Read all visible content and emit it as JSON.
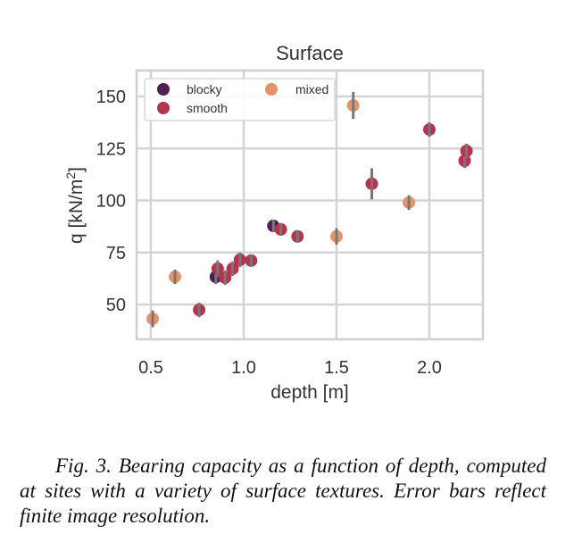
{
  "chart_data": {
    "type": "scatter",
    "title": "Surface",
    "xlabel": "depth [m]",
    "ylabel": "q [kN/m",
    "ylabel_superscript": "2",
    "ylabel_close": "]",
    "xlim": [
      0.46,
      2.3
    ],
    "ylim": [
      34,
      162
    ],
    "xticks": [
      0.5,
      1.0,
      1.5,
      2.0
    ],
    "xtick_labels": [
      "0.5",
      "1.0",
      "1.5",
      "2.0"
    ],
    "yticks": [
      50,
      75,
      100,
      125,
      150
    ],
    "ytick_labels": [
      "50",
      "75",
      "100",
      "125",
      "150"
    ],
    "grid": true,
    "legend_position": "top-left",
    "legend_columns": 2,
    "series": [
      {
        "name": "blocky",
        "color": "#4d1f52",
        "points": [
          {
            "x": 0.85,
            "y": 63.3,
            "err": 3.5
          },
          {
            "x": 1.16,
            "y": 87.8,
            "err": 3.0
          }
        ]
      },
      {
        "name": "smooth",
        "color": "#b3344f",
        "points": [
          {
            "x": 0.76,
            "y": 47.4,
            "err": 3.5
          },
          {
            "x": 0.86,
            "y": 67.2,
            "err": 4.0
          },
          {
            "x": 0.9,
            "y": 62.9,
            "err": 3.5
          },
          {
            "x": 0.94,
            "y": 67.2,
            "err": 3.5
          },
          {
            "x": 0.98,
            "y": 71.5,
            "err": 3.5
          },
          {
            "x": 1.04,
            "y": 71.1,
            "err": 3.0
          },
          {
            "x": 1.2,
            "y": 86.1,
            "err": 3.0
          },
          {
            "x": 1.29,
            "y": 82.7,
            "err": 3.0
          },
          {
            "x": 1.69,
            "y": 108.0,
            "err": 7.5
          },
          {
            "x": 2.0,
            "y": 134.1,
            "err": 3.5
          },
          {
            "x": 2.19,
            "y": 119.1,
            "err": 3.5
          },
          {
            "x": 2.2,
            "y": 123.8,
            "err": 3.5
          }
        ]
      },
      {
        "name": "mixed",
        "color": "#e3946a",
        "points": [
          {
            "x": 0.51,
            "y": 43.1,
            "err": 4.0
          },
          {
            "x": 0.63,
            "y": 63.3,
            "err": 3.5
          },
          {
            "x": 1.5,
            "y": 82.7,
            "err": 4.0
          },
          {
            "x": 1.59,
            "y": 145.7,
            "err": 6.5
          },
          {
            "x": 1.89,
            "y": 99.0,
            "err": 3.5
          }
        ]
      }
    ],
    "errorbar_color": "#777777",
    "grid_color": "#d4d4d4"
  },
  "caption": "Fig. 3. Bearing capacity as a function of depth, computed at sites with a variety of surface textures. Error bars reflect finite image resolution."
}
